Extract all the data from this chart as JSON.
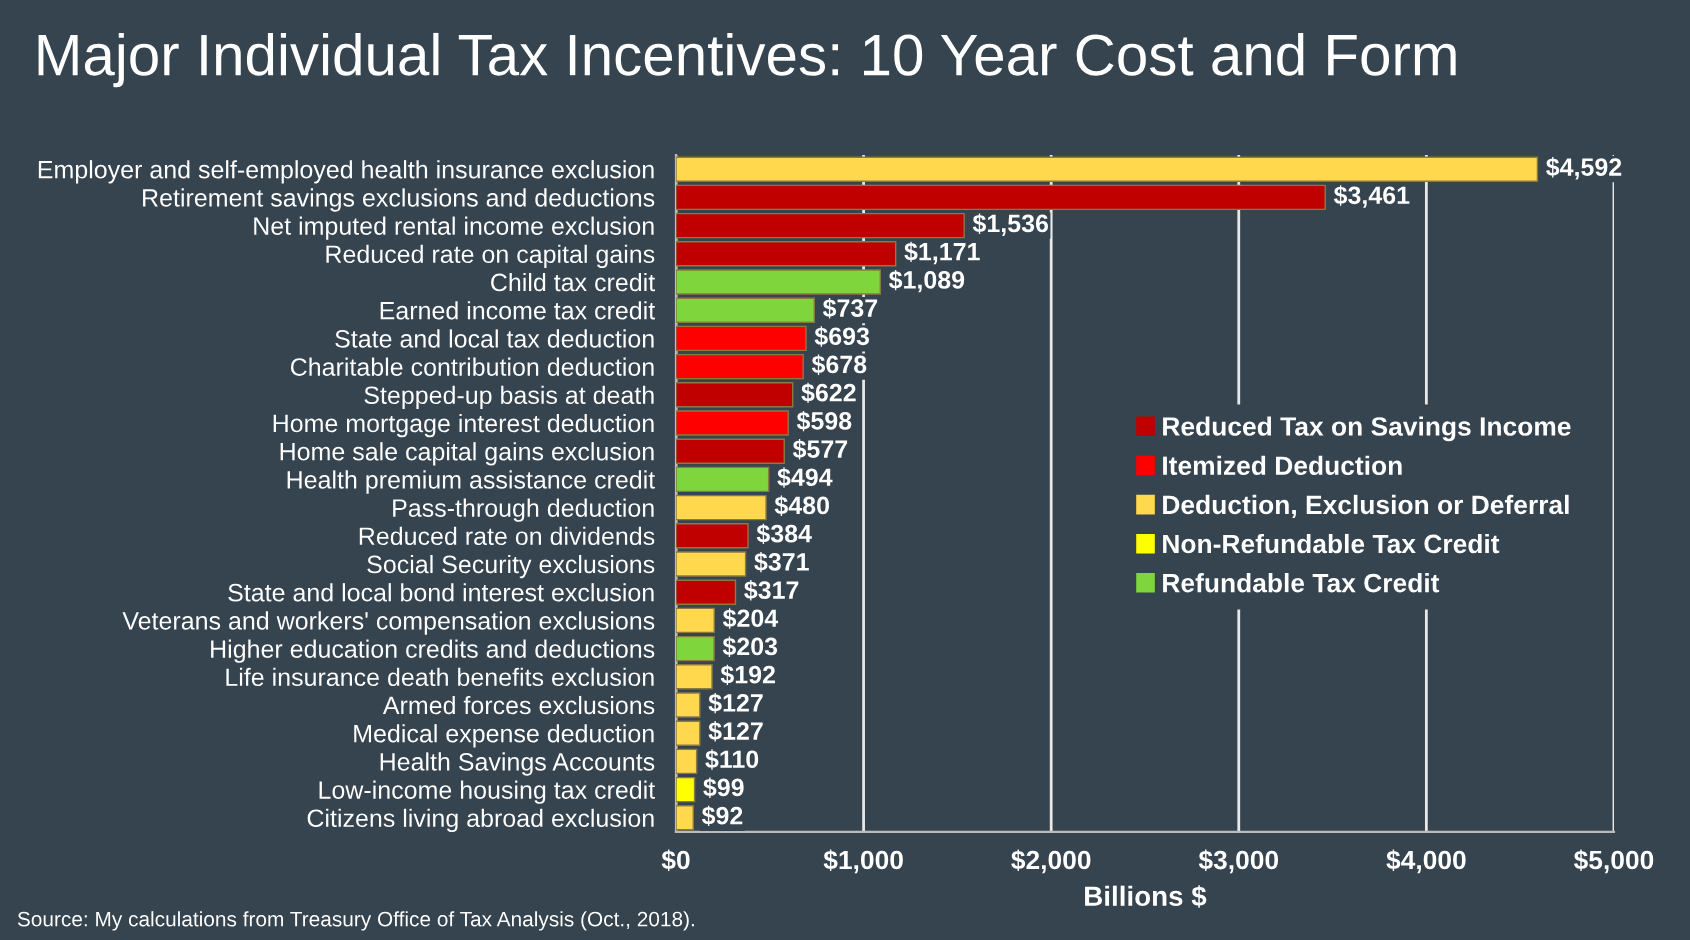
{
  "chart_data": {
    "type": "bar",
    "orientation": "horizontal",
    "title": "Major Individual Tax Incentives: 10 Year Cost and Form",
    "xlabel": "Billions $",
    "categories": [
      "Employer and self-employed health insurance exclusion",
      "Retirement savings exclusions and deductions",
      "Net imputed rental income exclusion",
      "Reduced rate on capital gains",
      "Child tax credit",
      "Earned income tax credit",
      "State and local tax deduction",
      "Charitable contribution deduction",
      "Stepped-up basis at death",
      "Home mortgage interest deduction",
      "Home sale capital gains exclusion",
      "Health premium assistance credit",
      "Pass-through deduction",
      "Reduced rate on dividends",
      "Social Security exclusions",
      "State and local bond interest exclusion",
      "Veterans and workers' compensation exclusions",
      "Higher education credits and deductions",
      "Life insurance death benefits exclusion",
      "Armed forces exclusions",
      "Medical expense deduction",
      "Health Savings Accounts",
      "Low-income housing tax credit",
      "Citizens living abroad exclusion"
    ],
    "series": [
      {
        "name": "Reduced Tax on Savings Income",
        "color": "#c00000",
        "values": [
          null,
          3461,
          1536,
          1171,
          null,
          null,
          null,
          null,
          622,
          null,
          577,
          null,
          null,
          384,
          null,
          317,
          null,
          null,
          null,
          null,
          null,
          null,
          null,
          null
        ],
        "value_labels": [
          null,
          "$3,461",
          "$1,536",
          "$1,171",
          null,
          null,
          null,
          null,
          "$622",
          null,
          "$577",
          null,
          null,
          "$384",
          null,
          "$317",
          null,
          null,
          null,
          null,
          null,
          null,
          null,
          null
        ]
      },
      {
        "name": "Itemized Deduction",
        "color": "#ff0000",
        "values": [
          null,
          null,
          null,
          null,
          null,
          null,
          693,
          678,
          null,
          598,
          null,
          null,
          null,
          null,
          null,
          null,
          null,
          null,
          null,
          null,
          null,
          null,
          null,
          null
        ],
        "value_labels": [
          null,
          null,
          null,
          null,
          null,
          null,
          "$693",
          "$678",
          null,
          "$598",
          null,
          null,
          null,
          null,
          null,
          null,
          null,
          null,
          null,
          null,
          null,
          null,
          null,
          null
        ]
      },
      {
        "name": "Deduction, Exclusion or Deferral",
        "color": "#ffd84d",
        "values": [
          4592,
          null,
          null,
          null,
          null,
          null,
          null,
          null,
          null,
          null,
          null,
          null,
          480,
          null,
          371,
          null,
          204,
          null,
          192,
          127,
          127,
          110,
          null,
          92
        ],
        "value_labels": [
          "$4,592",
          null,
          null,
          null,
          null,
          null,
          null,
          null,
          null,
          null,
          null,
          null,
          "$480",
          null,
          "$371",
          null,
          "$204",
          null,
          "$192",
          "$127",
          "$127",
          "$110",
          null,
          "$92"
        ]
      },
      {
        "name": "Non-Refundable Tax Credit",
        "color": "#ffff00",
        "values": [
          null,
          null,
          null,
          null,
          null,
          null,
          null,
          null,
          null,
          null,
          null,
          null,
          null,
          null,
          null,
          null,
          null,
          null,
          null,
          null,
          null,
          null,
          99,
          null
        ],
        "value_labels": [
          null,
          null,
          null,
          null,
          null,
          null,
          null,
          null,
          null,
          null,
          null,
          null,
          null,
          null,
          null,
          null,
          null,
          null,
          null,
          null,
          null,
          null,
          "$99",
          null
        ]
      },
      {
        "name": "Refundable Tax Credit",
        "color": "#7ed63c",
        "values": [
          null,
          null,
          null,
          null,
          1089,
          737,
          null,
          null,
          null,
          null,
          null,
          494,
          null,
          null,
          null,
          null,
          null,
          203,
          null,
          null,
          null,
          null,
          null,
          null
        ],
        "value_labels": [
          null,
          null,
          null,
          null,
          "$1,089",
          "$737",
          null,
          null,
          null,
          null,
          null,
          "$494",
          null,
          null,
          null,
          null,
          null,
          "$203",
          null,
          null,
          null,
          null,
          null,
          null
        ]
      }
    ],
    "xlim": [
      0,
      5000
    ],
    "xticks": [
      {
        "value": 0,
        "label": "$0"
      },
      {
        "value": 1000,
        "label": "$1,000"
      },
      {
        "value": 2000,
        "label": "$2,000"
      },
      {
        "value": 3000,
        "label": "$3,000"
      },
      {
        "value": 4000,
        "label": "$4,000"
      },
      {
        "value": 5000,
        "label": "$5,000"
      }
    ],
    "grid": "x",
    "legend": "right",
    "annotations": [
      "Source: My calculations from Treasury Office of Tax Analysis (Oct., 2018)."
    ]
  }
}
